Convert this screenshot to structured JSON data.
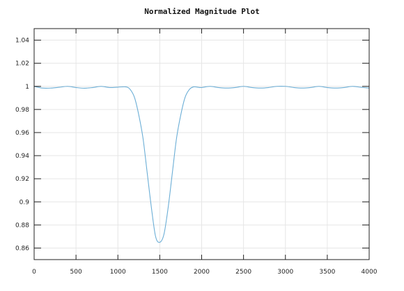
{
  "chart_data": {
    "type": "line",
    "title": "Normalized Magnitude Plot",
    "xlabel": "",
    "ylabel": "",
    "xlim": [
      0,
      4000
    ],
    "ylim": [
      0.85,
      1.05
    ],
    "x_ticks": [
      0,
      500,
      1000,
      1500,
      2000,
      2500,
      3000,
      3500,
      4000
    ],
    "y_ticks": [
      0.86,
      0.88,
      0.9,
      0.92,
      0.94,
      0.96,
      0.98,
      1,
      1.02,
      1.04
    ],
    "grid": true,
    "line_color": "#6baed6",
    "series": [
      {
        "x": [
          0,
          100,
          200,
          300,
          400,
          500,
          600,
          700,
          800,
          900,
          1000,
          1100,
          1150,
          1200,
          1250,
          1300,
          1350,
          1400,
          1450,
          1500,
          1550,
          1600,
          1650,
          1700,
          1750,
          1800,
          1850,
          1900,
          1950,
          2000,
          2100,
          2200,
          2300,
          2400,
          2500,
          2600,
          2700,
          2800,
          2900,
          3000,
          3100,
          3200,
          3300,
          3400,
          3500,
          3600,
          3700,
          3800,
          3900,
          4000
        ],
        "values": [
          1.0,
          0.9985,
          0.9985,
          0.9992,
          1.0,
          0.999,
          0.9984,
          0.999,
          1.0,
          0.999,
          0.9993,
          0.9995,
          0.997,
          0.99,
          0.975,
          0.955,
          0.925,
          0.895,
          0.87,
          0.865,
          0.872,
          0.895,
          0.925,
          0.955,
          0.975,
          0.99,
          0.997,
          0.9995,
          0.9993,
          0.999,
          1.0,
          0.999,
          0.9985,
          0.999,
          1.0,
          0.999,
          0.9985,
          0.999,
          1.0,
          1.0,
          0.999,
          0.9985,
          0.999,
          1.0,
          0.999,
          0.9985,
          0.999,
          1.0,
          0.9992,
          0.9985
        ]
      }
    ]
  }
}
